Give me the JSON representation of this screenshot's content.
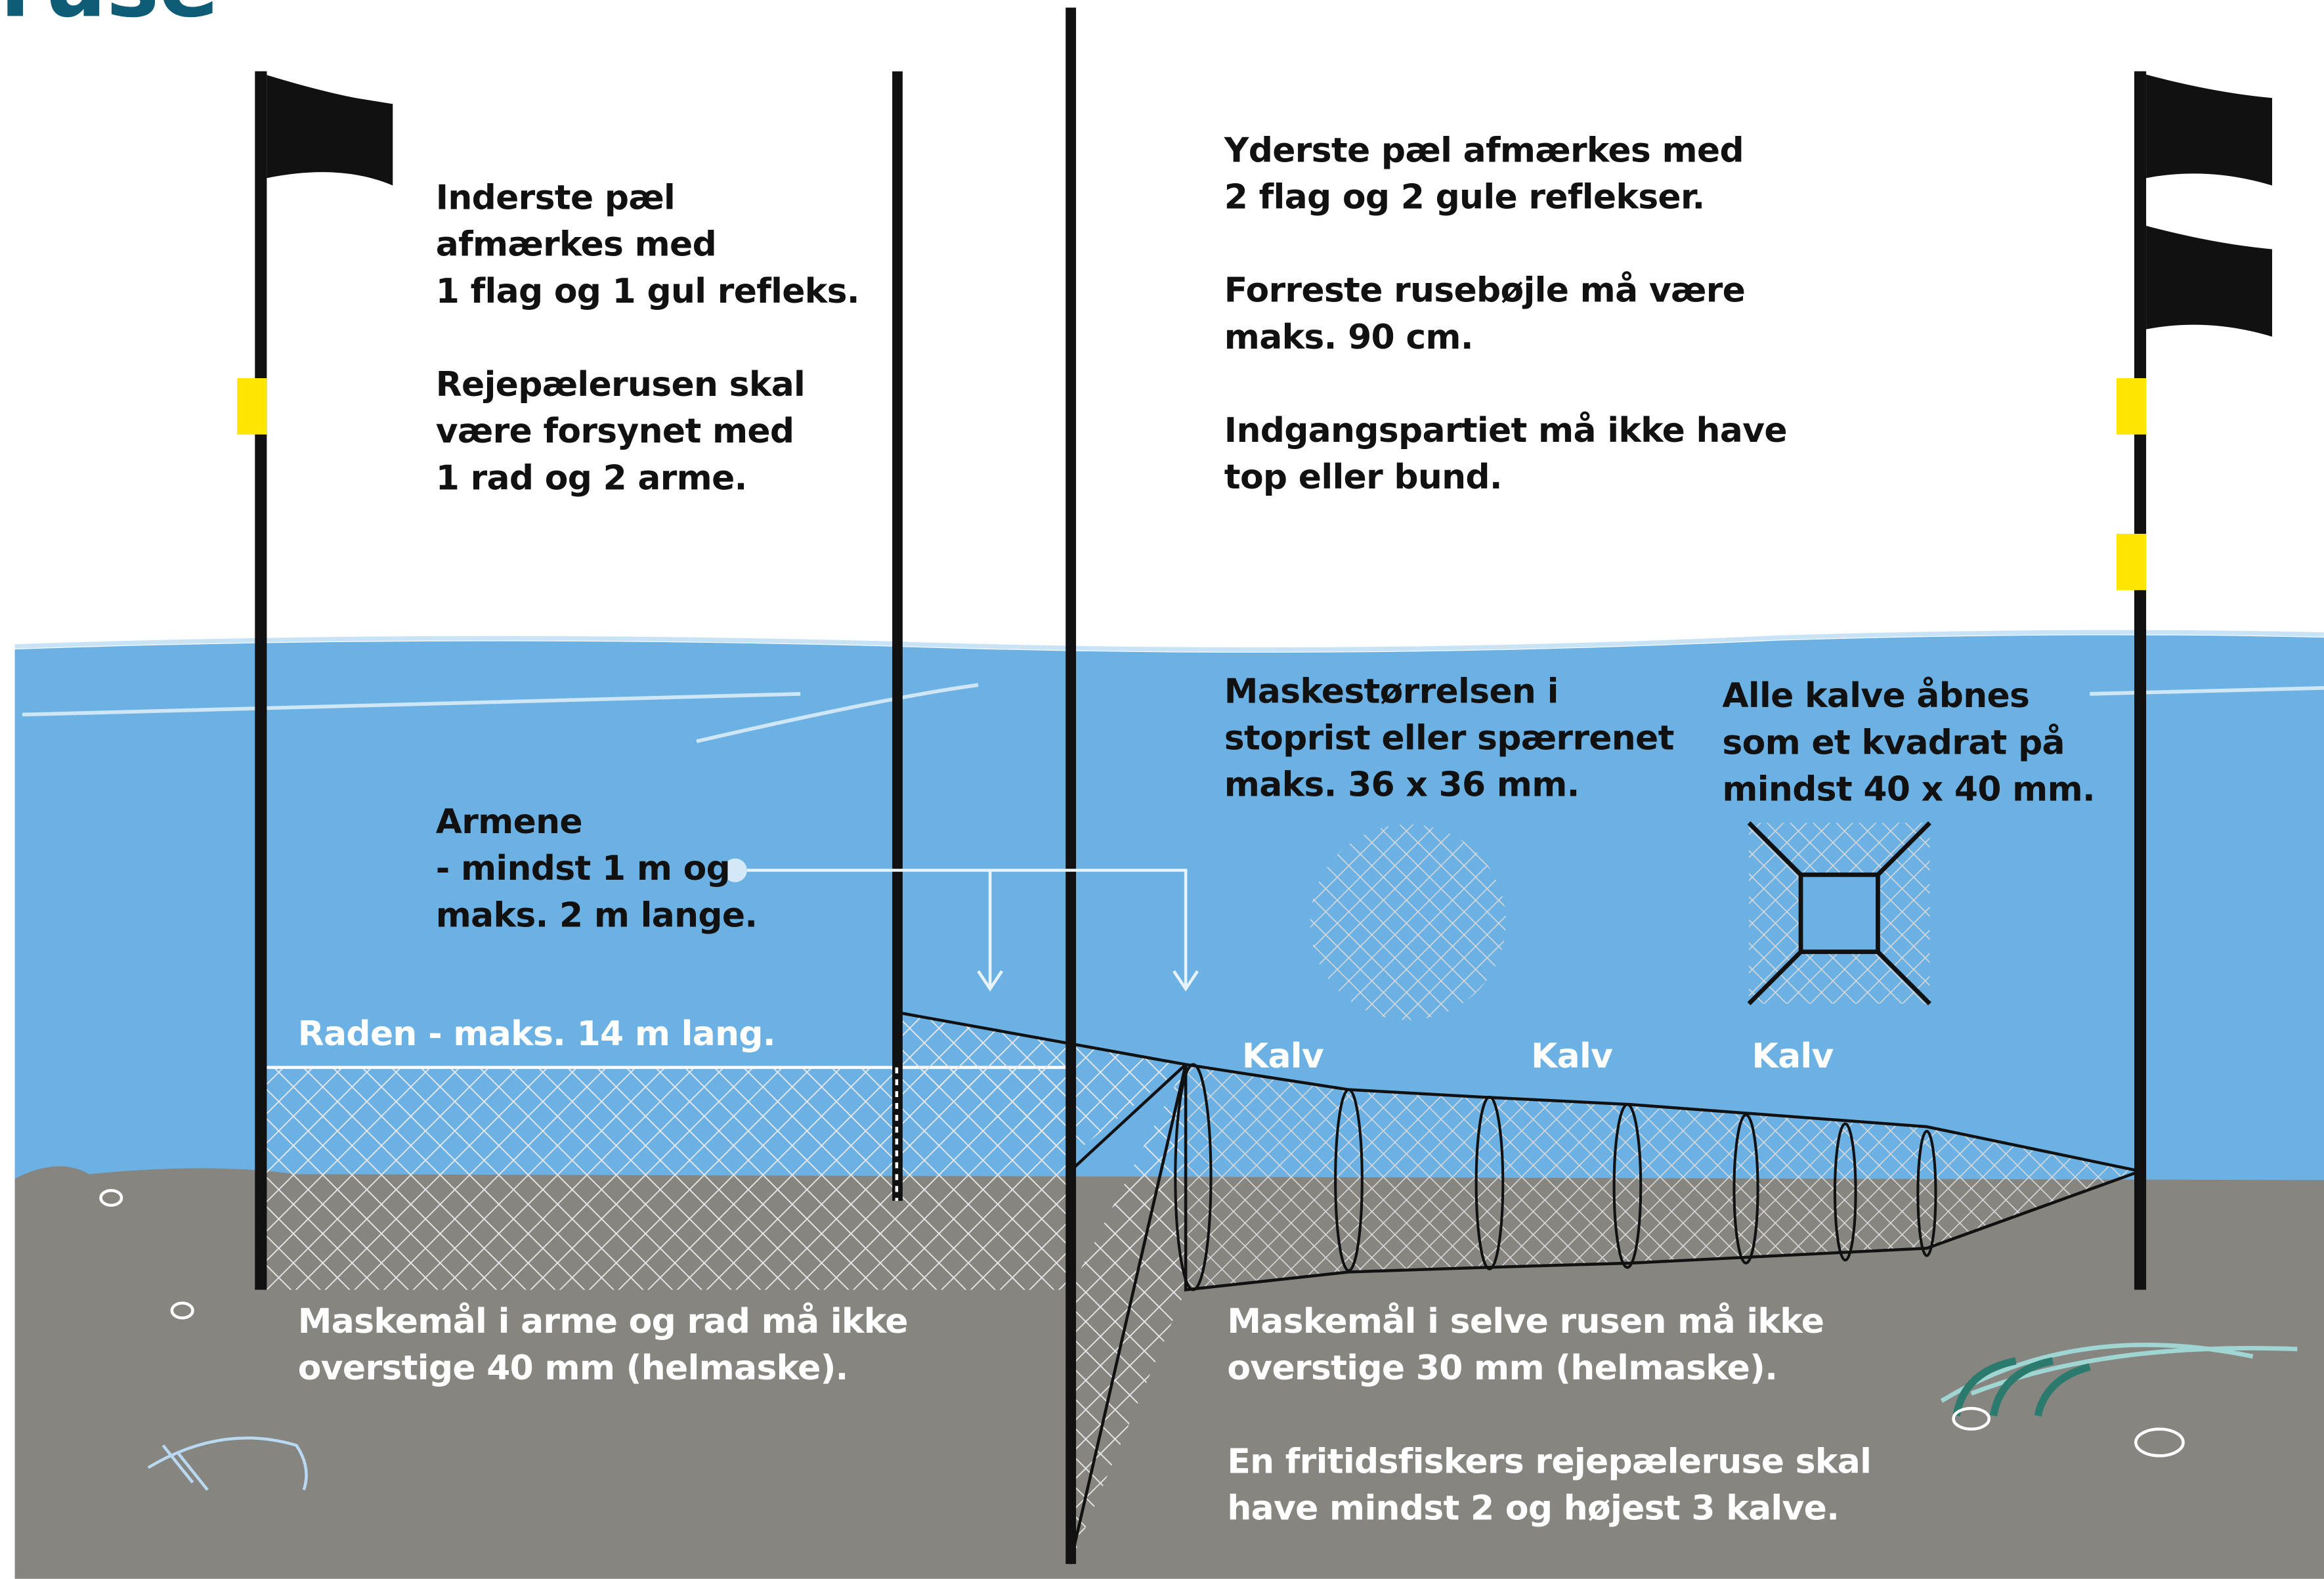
{
  "title": "ruse",
  "left_info": [
    [
      "Inderste pæl",
      "afmærkes med",
      "1 flag og 1 gul refleks."
    ],
    [
      "Rejepælerusen skal",
      "være forsynet med",
      "1 rad og 2 arme."
    ]
  ],
  "right_info": [
    [
      "Yderste pæl afmærkes med",
      "2 flag og 2 gule reflekser."
    ],
    [
      "Forreste rusebøjle må være",
      "maks. 90 cm."
    ],
    [
      "Indgangspartiet må ikke have",
      "top eller bund."
    ]
  ],
  "mesh_note": [
    "Maskestørrelsen i",
    "stoprist eller spærrenet",
    "maks. 36 x 36 mm."
  ],
  "kalv_note": [
    "Alle kalve åbnes",
    "som et kvadrat på",
    "mindst 40 x 40 mm."
  ],
  "arms_note": [
    "Armene",
    "- mindst 1 m og",
    "maks. 2 m lange."
  ],
  "row_note": "Raden - maks. 14 m lang.",
  "kalv_labels": [
    "Kalv",
    "Kalv",
    "Kalv"
  ],
  "bottom_left": [
    "Maskemål i arme og rad må ikke",
    "overstige 40 mm (helmaske)."
  ],
  "bottom_right": [
    [
      "Maskemål i selve rusen må ikke",
      "overstige 30 mm (helmaske)."
    ],
    [
      "En fritidsfiskers rejepæleruse skal",
      "have mindst 2 og højest 3 kalve."
    ]
  ]
}
